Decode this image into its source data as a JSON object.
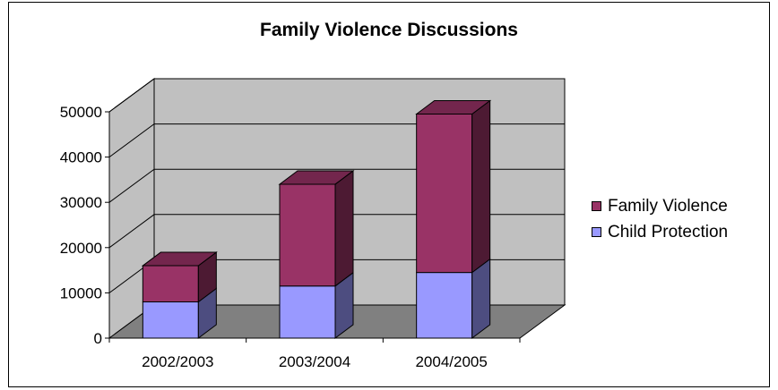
{
  "chart_data": {
    "type": "bar",
    "stacked": true,
    "three_d": true,
    "title": "Family Violence Discussions",
    "categories": [
      "2002/2003",
      "2003/2004",
      "2004/2005"
    ],
    "series": [
      {
        "name": "Child Protection",
        "values": [
          8000,
          11500,
          14500
        ],
        "color": "#9999ff"
      },
      {
        "name": "Family Violence",
        "values": [
          8000,
          22500,
          35000
        ],
        "color": "#993366"
      }
    ],
    "ylim": [
      0,
      50000
    ],
    "yticks": [
      "0",
      "10000",
      "20000",
      "30000",
      "40000",
      "50000"
    ],
    "grid": true,
    "legend_position": "right",
    "legend_order": [
      "Family Violence",
      "Child Protection"
    ],
    "wall_color": "#c0c0c0",
    "floor_color": "#808080"
  }
}
